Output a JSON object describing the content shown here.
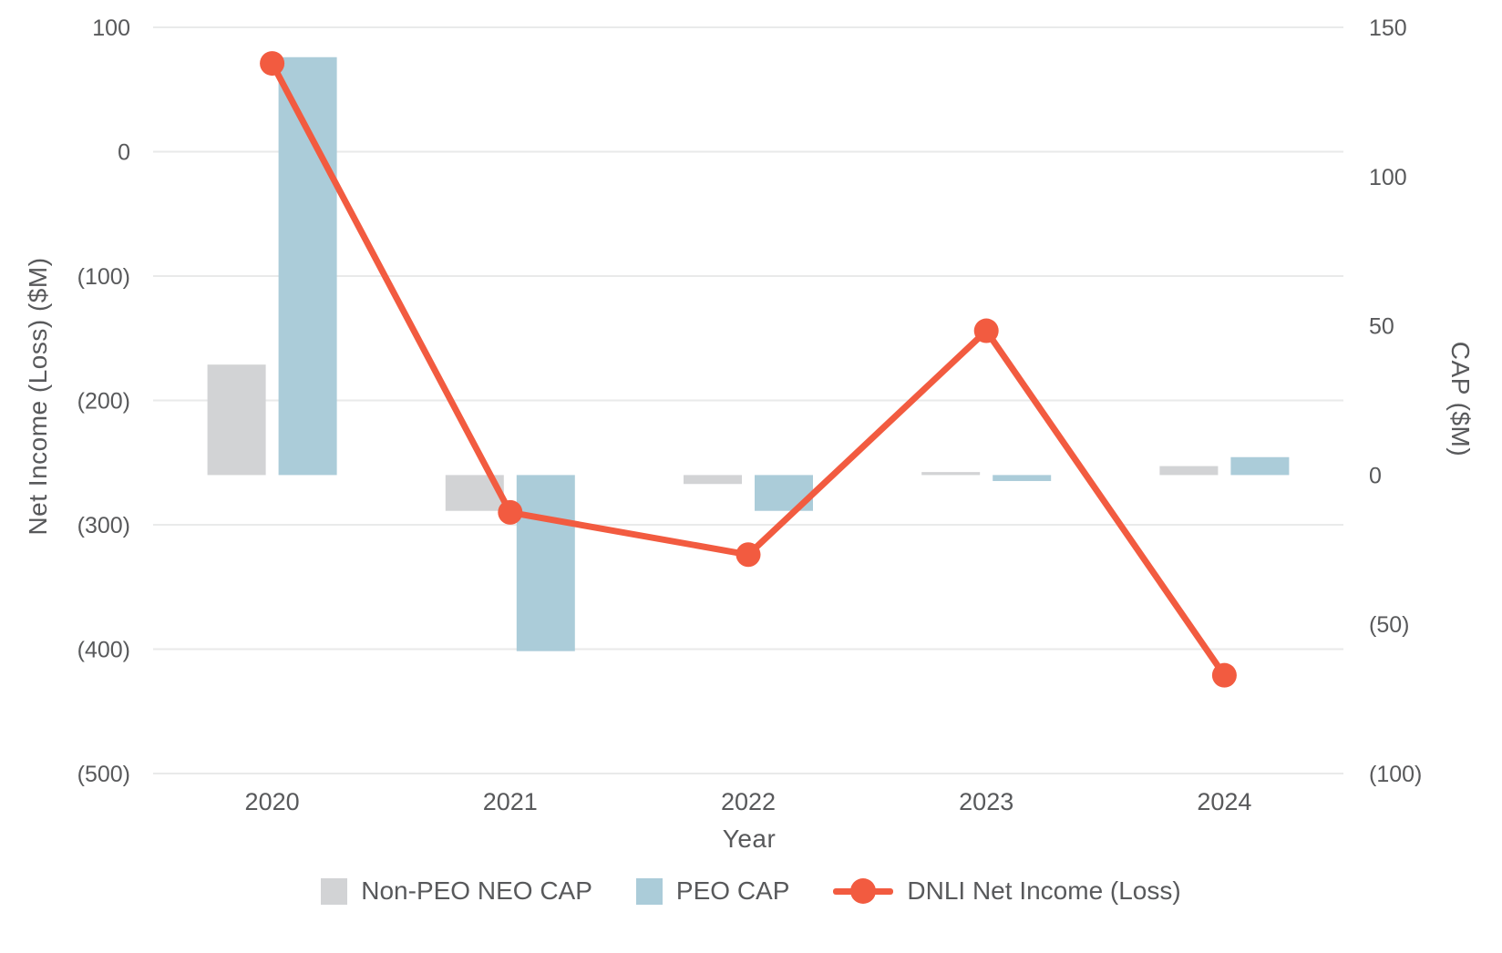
{
  "chart_data": {
    "type": "bar+line combo, dual y-axis",
    "title": "",
    "categories": [
      "2020",
      "2021",
      "2022",
      "2023",
      "2024"
    ],
    "series": [
      {
        "name": "Non-PEO NEO CAP",
        "type": "bar",
        "axis": "right",
        "color": "#d2d3d5",
        "values": [
          37,
          -12,
          -3,
          1,
          3
        ]
      },
      {
        "name": "PEO CAP",
        "type": "bar",
        "axis": "right",
        "color": "#abccd9",
        "values": [
          140,
          -59,
          -12,
          -2,
          6
        ]
      },
      {
        "name": "DNLI Net Income (Loss)",
        "type": "line",
        "axis": "left",
        "color": "#f25b40",
        "values": [
          71,
          -290,
          -324,
          -144,
          -421
        ]
      }
    ],
    "left_axis": {
      "label": "Net Income (Loss) ($M)",
      "range": [
        100,
        -500
      ],
      "ticks": [
        100,
        0,
        -100,
        -200,
        -300,
        -400,
        -500
      ],
      "tick_labels": [
        "100",
        "0",
        "(100)",
        "(200)",
        "(300)",
        "(400)",
        "(500)"
      ]
    },
    "right_axis": {
      "label": "CAP ($M)",
      "range": [
        150,
        -100
      ],
      "ticks": [
        150,
        100,
        50,
        0,
        -50,
        -100
      ],
      "tick_labels": [
        "150",
        "100",
        "50",
        "0",
        "(50)",
        "(100)"
      ]
    },
    "x_axis": {
      "label": "Year"
    },
    "grid": "horizontal gridlines at left-axis ticks",
    "legend_position": "bottom"
  }
}
